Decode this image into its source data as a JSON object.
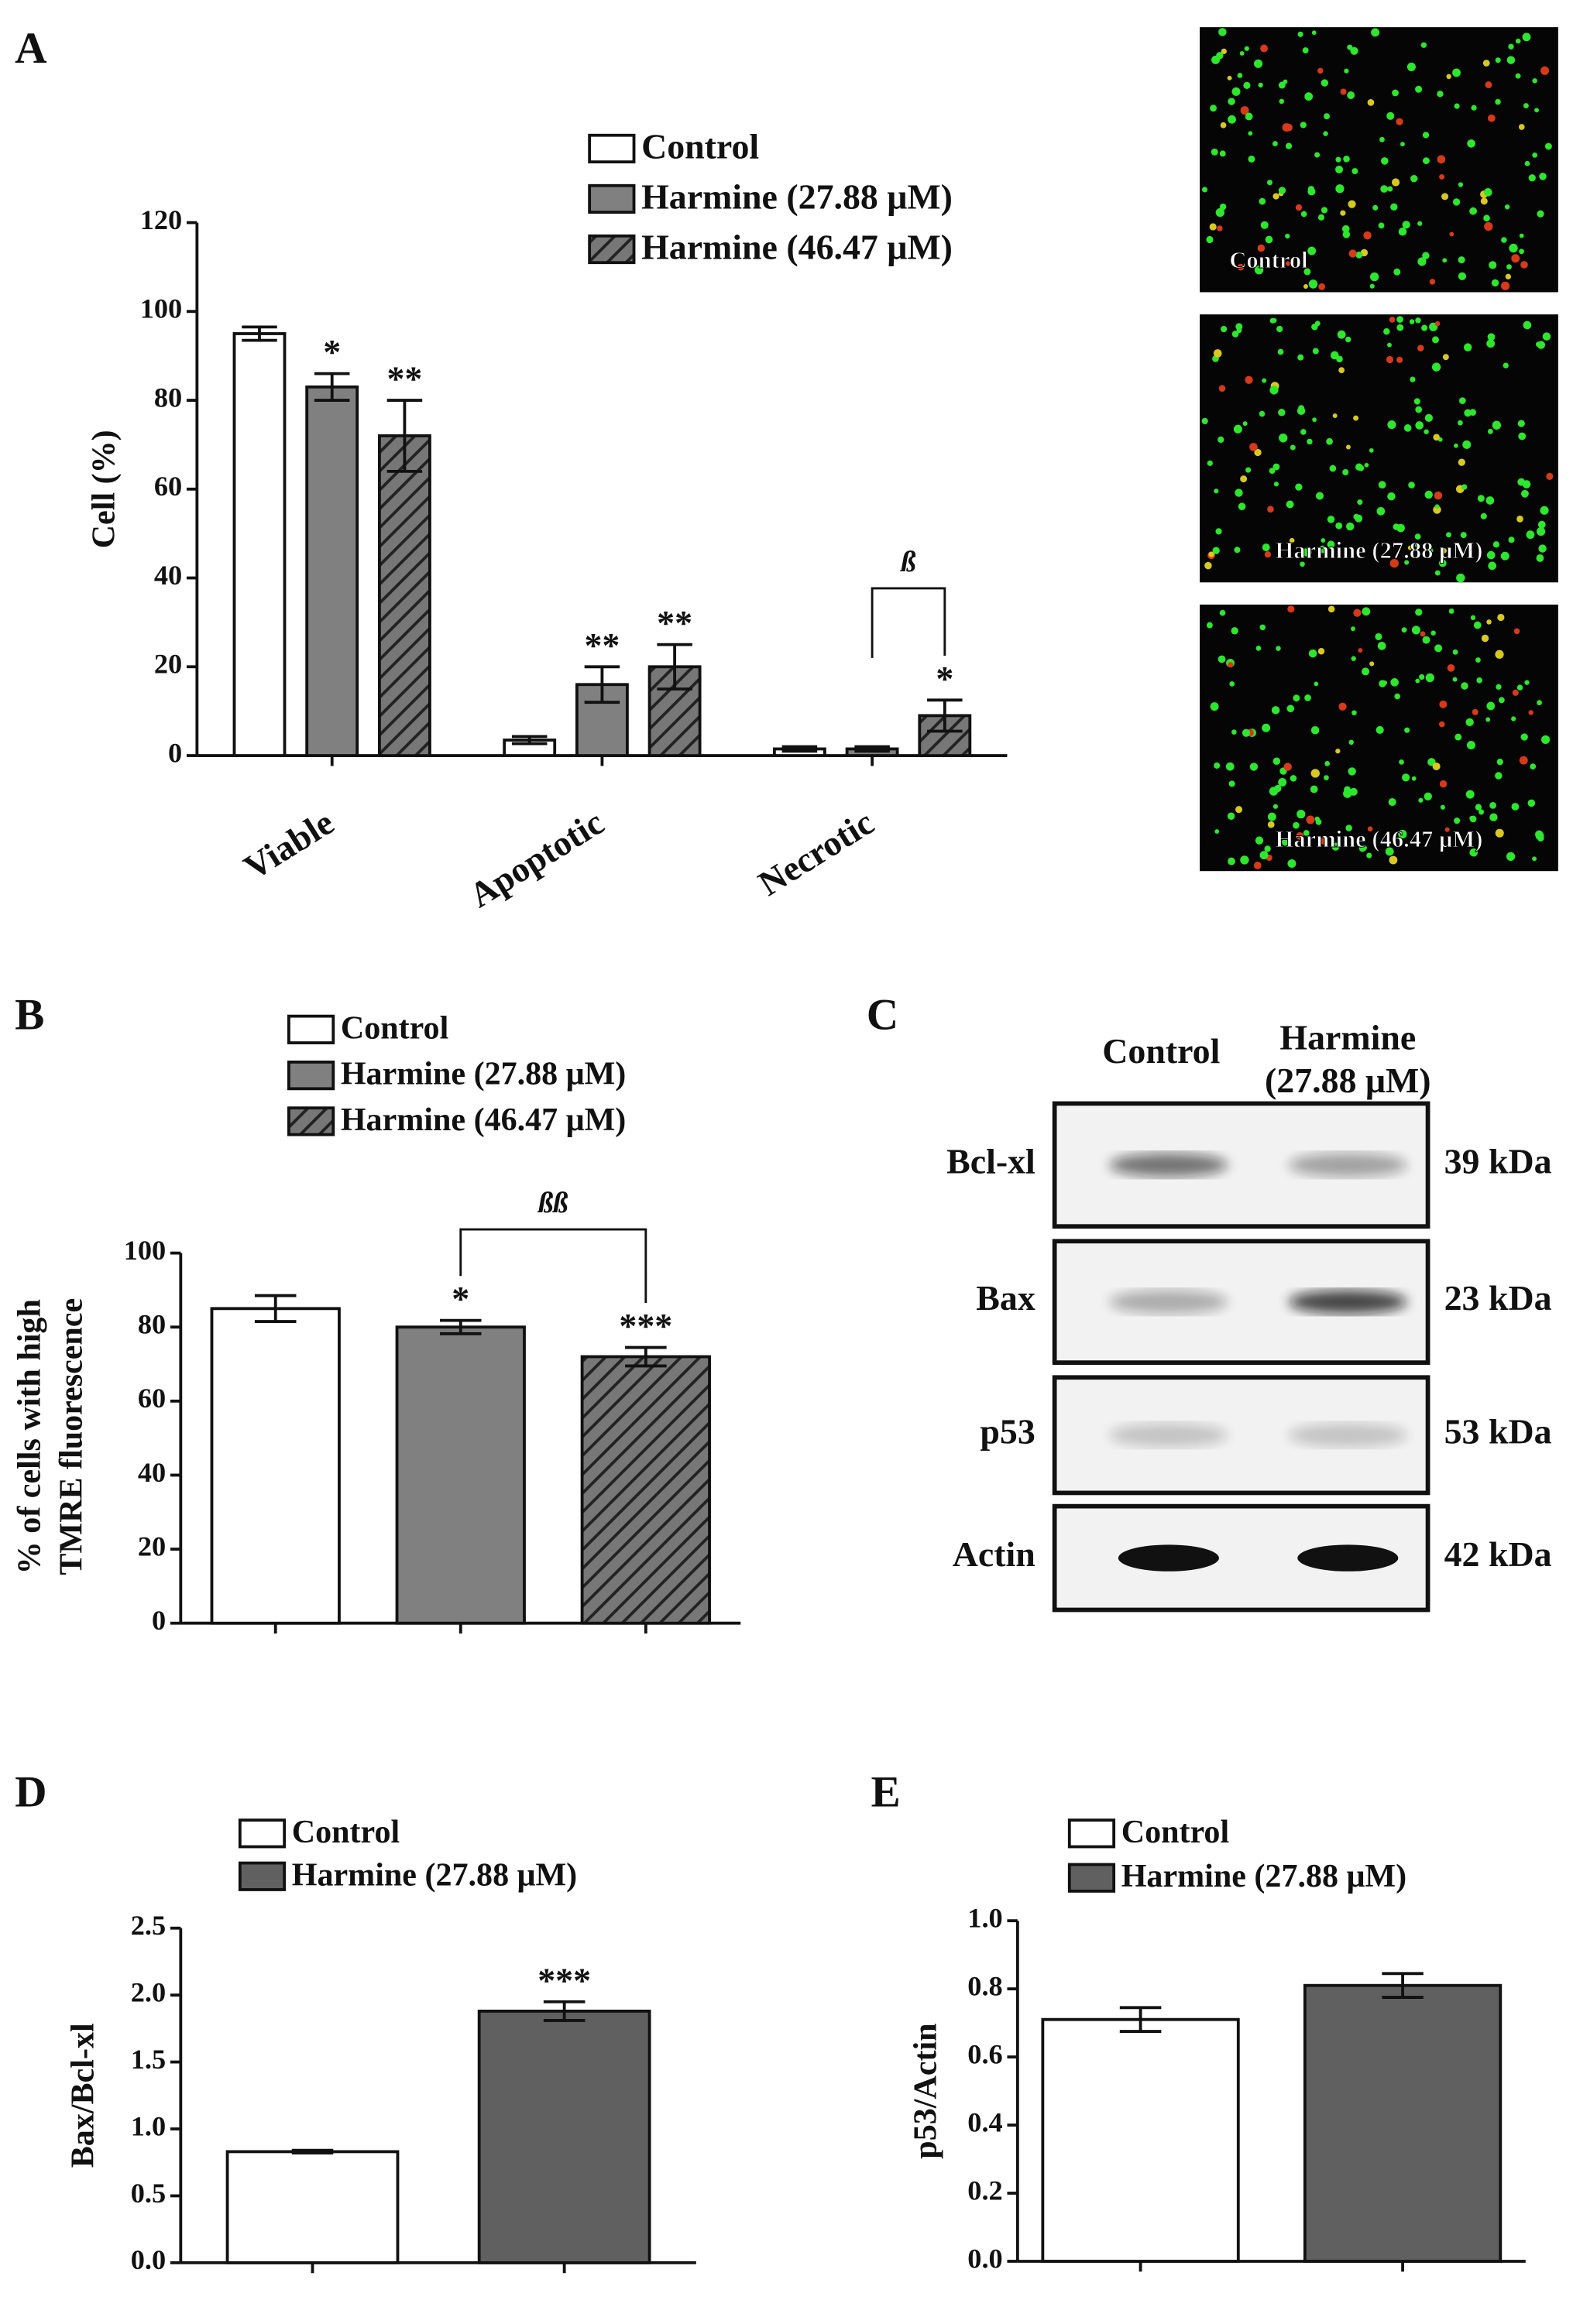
{
  "chart_data": [
    {
      "type": "bar",
      "panel": "A",
      "ylabel": [
        "Cell (%)"
      ],
      "categories": [
        "Viable",
        "Apoptotic",
        "Necrotic"
      ],
      "series": [
        {
          "name": "Control",
          "color": "#ffffff",
          "values": [
            95,
            3.5,
            1.5
          ],
          "errors": [
            1.5,
            0.8,
            0.5
          ],
          "annotations": [
            null,
            null,
            null
          ]
        },
        {
          "name": "Harmine (27.88 μM)",
          "color": "#808080",
          "values": [
            83,
            16,
            1.5
          ],
          "errors": [
            3,
            4,
            0.5
          ],
          "annotations": [
            "*",
            "**",
            null
          ]
        },
        {
          "name": "Harmine (46.47 μM)",
          "color": "#707070",
          "hatch": true,
          "values": [
            72,
            20,
            9
          ],
          "errors": [
            8,
            5,
            3.5
          ],
          "annotations": [
            "**",
            "**",
            "*"
          ]
        }
      ],
      "bracket_label": "ß",
      "ylim": [
        0,
        120
      ],
      "yticks": [
        0,
        20,
        40,
        60,
        80,
        100,
        120
      ]
    },
    {
      "type": "bar",
      "panel": "B",
      "ylabel": [
        "% of cells with high",
        "TMRE fluorescence"
      ],
      "categories": [
        null
      ],
      "series": [
        {
          "name": "Control",
          "color": "#ffffff",
          "values": [
            85
          ],
          "errors": [
            3.5
          ],
          "annotations": [
            null
          ]
        },
        {
          "name": "Harmine (27.88 μM)",
          "color": "#808080",
          "values": [
            80
          ],
          "errors": [
            1.8
          ],
          "annotations": [
            "*"
          ]
        },
        {
          "name": "Harmine (46.47 μM)",
          "color": "#707070",
          "hatch": true,
          "values": [
            72
          ],
          "errors": [
            2.5
          ],
          "annotations": [
            "***"
          ]
        }
      ],
      "bracket_label": "ßß",
      "ylim": [
        0,
        100
      ],
      "yticks": [
        0,
        20,
        40,
        60,
        80,
        100
      ]
    },
    {
      "type": "bar",
      "panel": "D",
      "ylabel": [
        "Bax/Bcl-xl"
      ],
      "categories": [
        null
      ],
      "series": [
        {
          "name": "Control",
          "color": "#ffffff",
          "values": [
            0.83
          ],
          "errors": [
            0.01
          ],
          "annotations": [
            null
          ]
        },
        {
          "name": "Harmine (27.88 μM)",
          "color": "#606060",
          "values": [
            1.88
          ],
          "errors": [
            0.07
          ],
          "annotations": [
            "***"
          ]
        }
      ],
      "ylim": [
        0,
        2.5
      ],
      "yticks": [
        {
          "value": 0,
          "label": "0.0"
        },
        0.5,
        {
          "value": 1,
          "label": "1.0"
        },
        1.5,
        {
          "value": 2,
          "label": "2.0"
        },
        2.5
      ]
    },
    {
      "type": "bar",
      "panel": "E",
      "ylabel": [
        "p53/Actin"
      ],
      "categories": [
        null
      ],
      "series": [
        {
          "name": "Control",
          "color": "#ffffff",
          "values": [
            0.71
          ],
          "errors": [
            0.035
          ],
          "annotations": [
            null
          ]
        },
        {
          "name": "Harmine (27.88 μM)",
          "color": "#606060",
          "values": [
            0.81
          ],
          "errors": [
            0.035
          ],
          "annotations": [
            null
          ]
        }
      ],
      "ylim": [
        0,
        1
      ],
      "yticks": [
        {
          "value": 0,
          "label": "0.0"
        },
        0.2,
        0.4,
        0.6,
        0.8,
        {
          "value": 1,
          "label": "1.0"
        }
      ]
    }
  ],
  "micrographs": {
    "labels": [
      "Control",
      "Harmine (27.88 μM)",
      "Harmine (46.47 μM)"
    ]
  },
  "blot": {
    "panel": "C",
    "columns": [
      {
        "lines": [
          "Control"
        ]
      },
      {
        "lines": [
          "Harmine",
          "(27.88 μM)"
        ]
      }
    ],
    "rows": [
      {
        "protein": "Bcl-xl",
        "size": "39 kDa"
      },
      {
        "protein": "Bax",
        "size": "23 kDa"
      },
      {
        "protein": "p53",
        "size": "53 kDa"
      },
      {
        "protein": "Actin",
        "size": "42 kDa"
      }
    ]
  }
}
